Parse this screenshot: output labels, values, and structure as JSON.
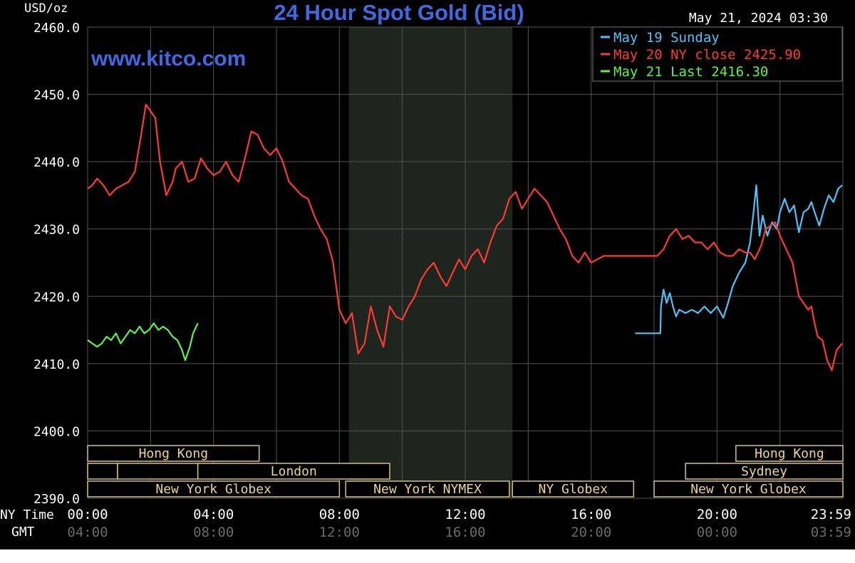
{
  "chart_data": {
    "type": "line",
    "title": "24 Hour Spot Gold (Bid)",
    "watermark": "www.kitco.com",
    "timestamp": "May 21, 2024 03:30",
    "ylabel": "USD/oz",
    "ylim": [
      2390,
      2460
    ],
    "y_ticks": [
      "2460.0",
      "2450.0",
      "2440.0",
      "2430.0",
      "2420.0",
      "2410.0",
      "2400.0",
      "2390.0"
    ],
    "x_range_hours": [
      0,
      24
    ],
    "x_ticks_ny": [
      "00:00",
      "04:00",
      "08:00",
      "12:00",
      "16:00",
      "20:00",
      "23:59"
    ],
    "x_ticks_gmt": [
      "04:00",
      "08:00",
      "12:00",
      "16:00",
      "20:00",
      "00:00",
      "03:59"
    ],
    "x_row_labels": {
      "ny": "NY Time",
      "gmt": "GMT"
    },
    "grid": true,
    "shaded_period_hours": [
      8.3,
      13.5
    ],
    "legend_position": "top-right",
    "series": [
      {
        "name": "May 19 Sunday",
        "label": "May 19 Sunday",
        "color": "#4fc3f7",
        "x": [
          17.4,
          18.2,
          18.22,
          18.3,
          18.4,
          18.5,
          18.6,
          18.7,
          18.8,
          19.0,
          19.2,
          19.4,
          19.6,
          19.8,
          20.0,
          20.2,
          20.35,
          20.5,
          20.7,
          20.9,
          21.05,
          21.15,
          21.25,
          21.35,
          21.45,
          21.6,
          21.75,
          21.9,
          22.0,
          22.15,
          22.3,
          22.45,
          22.6,
          22.75,
          22.9,
          23.0,
          23.1,
          23.25,
          23.4,
          23.55,
          23.7,
          23.85,
          23.98
        ],
        "values": [
          2414.5,
          2414.5,
          2418.5,
          2421.0,
          2419.0,
          2420.5,
          2418.5,
          2417.0,
          2418.0,
          2417.5,
          2418.0,
          2417.5,
          2418.5,
          2417.5,
          2418.5,
          2416.8,
          2419.0,
          2421.5,
          2423.5,
          2425.0,
          2428.0,
          2432.0,
          2436.5,
          2429.0,
          2432.0,
          2429.0,
          2431.0,
          2430.0,
          2432.5,
          2434.5,
          2432.5,
          2433.5,
          2429.5,
          2432.5,
          2433.0,
          2434.0,
          2432.5,
          2430.5,
          2433.0,
          2435.0,
          2434.0,
          2436.0,
          2436.5
        ]
      },
      {
        "name": "May 20 NY close 2425.90",
        "label": "May 20 NY close 2425.90",
        "color": "#ff3b30",
        "x": [
          0.0,
          0.15,
          0.3,
          0.5,
          0.7,
          0.9,
          1.1,
          1.3,
          1.5,
          1.7,
          1.85,
          2.0,
          2.15,
          2.3,
          2.5,
          2.7,
          2.8,
          3.0,
          3.2,
          3.4,
          3.6,
          3.8,
          4.0,
          4.2,
          4.4,
          4.6,
          4.8,
          5.0,
          5.2,
          5.4,
          5.6,
          5.8,
          6.0,
          6.2,
          6.4,
          6.6,
          6.8,
          7.0,
          7.2,
          7.4,
          7.6,
          7.8,
          8.0,
          8.2,
          8.4,
          8.6,
          8.8,
          9.0,
          9.2,
          9.4,
          9.6,
          9.8,
          10.0,
          10.2,
          10.4,
          10.6,
          10.8,
          11.0,
          11.2,
          11.4,
          11.6,
          11.8,
          12.0,
          12.2,
          12.4,
          12.6,
          12.8,
          13.0,
          13.2,
          13.4,
          13.6,
          13.8,
          14.0,
          14.2,
          14.4,
          14.6,
          14.8,
          15.0,
          15.2,
          15.4,
          15.6,
          15.8,
          16.0,
          16.2,
          16.4,
          16.6,
          16.8,
          17.0,
          17.4,
          17.8,
          18.1,
          18.3,
          18.5,
          18.7,
          18.9,
          19.1,
          19.3,
          19.5,
          19.7,
          19.9,
          20.1,
          20.3,
          20.5,
          20.7,
          20.9,
          21.05,
          21.2,
          21.4,
          21.55,
          21.7,
          21.85,
          22.0,
          22.2,
          22.4,
          22.6,
          22.75,
          22.9,
          23.0,
          23.1,
          23.2,
          23.35,
          23.5,
          23.65,
          23.8,
          23.98
        ],
        "values": [
          2436.0,
          2436.5,
          2437.5,
          2436.5,
          2435.0,
          2436.0,
          2436.5,
          2437.0,
          2438.5,
          2444.0,
          2448.5,
          2447.5,
          2446.5,
          2440.0,
          2435.0,
          2437.0,
          2439.0,
          2440.0,
          2437.0,
          2437.5,
          2440.5,
          2439.0,
          2438.0,
          2438.5,
          2440.0,
          2438.0,
          2437.0,
          2440.5,
          2444.5,
          2444.0,
          2442.0,
          2441.0,
          2442.0,
          2440.0,
          2437.0,
          2436.0,
          2435.0,
          2434.5,
          2432.0,
          2430.0,
          2428.5,
          2425.0,
          2418.0,
          2416.0,
          2417.5,
          2411.5,
          2413.0,
          2418.5,
          2415.0,
          2412.5,
          2418.5,
          2417.0,
          2416.5,
          2418.5,
          2420.0,
          2422.5,
          2424.0,
          2425.0,
          2423.0,
          2421.5,
          2423.5,
          2425.5,
          2424.0,
          2426.0,
          2427.0,
          2425.0,
          2428.0,
          2430.5,
          2431.5,
          2434.5,
          2435.5,
          2433.0,
          2434.5,
          2436.0,
          2435.0,
          2434.0,
          2432.0,
          2430.0,
          2428.5,
          2426.0,
          2425.0,
          2426.5,
          2425.0,
          2425.5,
          2426.0,
          2426.0,
          2426.0,
          2426.0,
          2426.0,
          2426.0,
          2426.0,
          2427.0,
          2429.0,
          2430.0,
          2428.5,
          2429.0,
          2428.0,
          2428.0,
          2427.0,
          2428.0,
          2426.5,
          2426.0,
          2426.0,
          2427.0,
          2426.5,
          2426.5,
          2425.5,
          2427.5,
          2430.0,
          2430.5,
          2431.0,
          2429.0,
          2427.0,
          2425.0,
          2420.0,
          2419.0,
          2418.0,
          2418.5,
          2416.0,
          2414.0,
          2413.5,
          2410.5,
          2409.0,
          2412.0,
          2413.0
        ]
      },
      {
        "name": "May 21 Last 2416.30",
        "label": "May 21 Last 2416.30",
        "color": "#5cf542",
        "x": [
          0.0,
          0.15,
          0.3,
          0.45,
          0.6,
          0.75,
          0.9,
          1.05,
          1.2,
          1.35,
          1.5,
          1.65,
          1.8,
          1.95,
          2.1,
          2.25,
          2.4,
          2.55,
          2.7,
          2.85,
          3.0,
          3.1,
          3.25,
          3.35,
          3.5
        ],
        "values": [
          2413.5,
          2413.0,
          2412.5,
          2413.0,
          2414.0,
          2413.5,
          2414.5,
          2413.0,
          2414.0,
          2415.0,
          2414.5,
          2415.5,
          2414.5,
          2415.0,
          2416.0,
          2415.0,
          2415.5,
          2415.0,
          2414.0,
          2413.5,
          2412.0,
          2410.5,
          2412.5,
          2414.5,
          2416.0
        ]
      }
    ],
    "sessions": [
      {
        "label": "Hong Kong",
        "row": 0,
        "start_h": 0.0,
        "end_h": 5.45,
        "style": "highlight"
      },
      {
        "label": "",
        "row": 1,
        "start_h": 0.0,
        "end_h": 0.95,
        "style": "box"
      },
      {
        "label": "London",
        "row": 1,
        "start_h": 3.5,
        "end_h": 9.6,
        "style": "highlight"
      },
      {
        "label": "",
        "row": 1,
        "start_h": 0.95,
        "end_h": 3.5,
        "style": "box"
      },
      {
        "label": "New York Globex",
        "row": 2,
        "start_h": 0.0,
        "end_h": 8.0,
        "style": "highlight"
      },
      {
        "label": "New York NYMEX",
        "row": 2,
        "start_h": 8.2,
        "end_h": 13.4,
        "style": "highlight"
      },
      {
        "label": "NY Globex",
        "row": 2,
        "start_h": 13.5,
        "end_h": 17.35,
        "style": "highlight"
      },
      {
        "label": "Hong Kong",
        "row": 0,
        "start_h": 20.6,
        "end_h": 24.0,
        "style": "highlight"
      },
      {
        "label": "Sydney",
        "row": 1,
        "start_h": 19.0,
        "end_h": 24.0,
        "style": "highlight"
      },
      {
        "label": "New York Globex",
        "row": 2,
        "start_h": 18.0,
        "end_h": 24.0,
        "style": "highlight"
      }
    ],
    "colors": {
      "background": "#000000",
      "grid": "#555555",
      "shade": "#1e241e",
      "axis_text": "#ffffff",
      "gmt_text": "#6a6a6a",
      "title": "#4169e1",
      "watermark": "#4169e1",
      "session_text": "#f0d58c",
      "session_border": "#d8c27a"
    }
  }
}
